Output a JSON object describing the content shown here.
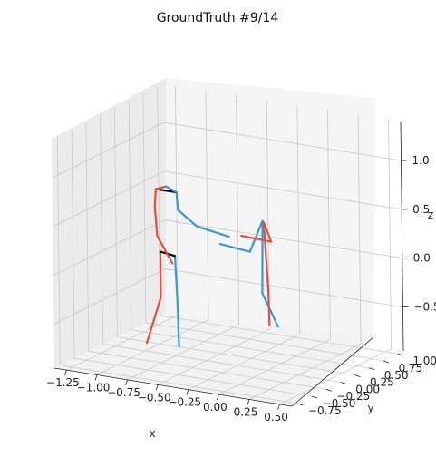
{
  "chart_data": {
    "type": "line",
    "title": "GroundTruth #9/14",
    "projection": "3d",
    "grid": true,
    "axes": {
      "x": {
        "label": "x",
        "range": [
          -1.35,
          0.6
        ],
        "ticks": [
          -1.25,
          -1.0,
          -0.75,
          -0.5,
          -0.25,
          0.0,
          0.25,
          0.5
        ],
        "tick_labels": [
          "−1.25",
          "−1.00",
          "−0.75",
          "−0.50",
          "−0.25",
          "0.00",
          "0.25",
          "0.50"
        ]
      },
      "y": {
        "label": "y",
        "range": [
          -0.85,
          1.1
        ],
        "ticks": [
          -0.75,
          -0.5,
          -0.25,
          0.0,
          0.25,
          0.5,
          0.75,
          1.0
        ],
        "tick_labels": [
          "−0.75",
          "−0.50",
          "−0.25",
          "0.00",
          "0.25",
          "0.50",
          "0.75",
          "1.00"
        ]
      },
      "z": {
        "label": "z",
        "range": [
          -0.95,
          1.4
        ],
        "ticks": [
          -0.5,
          0.0,
          0.5,
          1.0
        ],
        "tick_labels": [
          "−0.5",
          "0.0",
          "0.5",
          "1.0"
        ]
      }
    },
    "colors": {
      "left": "#e74c3c",
      "right": "#3498db",
      "center": "#000000"
    },
    "series": [
      {
        "side": "left",
        "points": [
          [
            -0.86,
            -0.02,
            0.1
          ],
          [
            -0.86,
            -0.02,
            -0.37
          ],
          [
            -0.97,
            -0.04,
            -0.85
          ]
        ]
      },
      {
        "side": "right",
        "points": [
          [
            -0.74,
            -0.02,
            0.08
          ],
          [
            -0.72,
            -0.03,
            -0.35
          ],
          [
            -0.7,
            -0.05,
            -0.83
          ]
        ]
      },
      {
        "side": "center",
        "points": [
          [
            -0.86,
            -0.02,
            0.1
          ],
          [
            -0.74,
            -0.02,
            0.08
          ]
        ]
      },
      {
        "side": "left",
        "points": [
          [
            -0.91,
            0.02,
            0.72
          ],
          [
            -0.91,
            0.0,
            0.55
          ],
          [
            -0.87,
            -0.05,
            0.27
          ],
          [
            -0.7,
            -0.15,
            0.05
          ]
        ]
      },
      {
        "side": "right",
        "points": [
          [
            -0.74,
            0.02,
            0.72
          ],
          [
            -0.72,
            0.0,
            0.55
          ],
          [
            -0.58,
            0.03,
            0.4
          ],
          [
            -0.35,
            0.1,
            0.32
          ]
        ]
      },
      {
        "side": "center",
        "points": [
          [
            -0.91,
            0.02,
            0.72
          ],
          [
            -0.74,
            0.02,
            0.72
          ]
        ]
      },
      {
        "side": "left",
        "points": [
          [
            -0.83,
            0.03,
            0.76
          ],
          [
            -0.91,
            0.02,
            0.72
          ]
        ]
      },
      {
        "side": "right",
        "points": [
          [
            -0.83,
            0.03,
            0.76
          ],
          [
            -0.74,
            0.02,
            0.72
          ]
        ]
      },
      {
        "side": "right",
        "points": [
          [
            -0.4,
            0.05,
            0.25
          ],
          [
            -0.18,
            0.1,
            0.2
          ],
          [
            -0.12,
            0.2,
            0.5
          ],
          [
            -0.2,
            0.35,
            -0.3
          ],
          [
            -0.05,
            0.3,
            -0.6
          ]
        ]
      },
      {
        "side": "left",
        "points": [
          [
            -0.25,
            0.1,
            0.35
          ],
          [
            -0.05,
            0.2,
            0.3
          ],
          [
            -0.12,
            0.22,
            0.48
          ],
          [
            -0.15,
            0.35,
            -0.25
          ],
          [
            -0.12,
            0.3,
            -0.6
          ]
        ]
      }
    ]
  }
}
